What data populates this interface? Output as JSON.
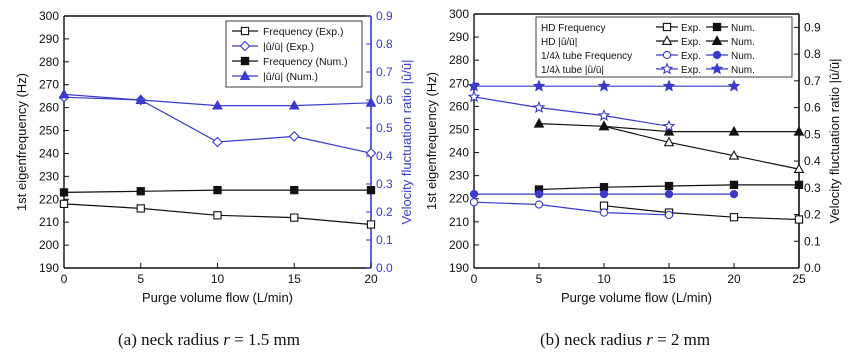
{
  "figure": {
    "caption_a": {
      "prefix": "(a) neck radius ",
      "var": "r",
      "suffix": " = 1.5 mm"
    },
    "caption_b": {
      "prefix": "(b) neck radius ",
      "var": "r",
      "suffix": " = 2 mm"
    }
  },
  "colors": {
    "black": "#111111",
    "blue": "#3a3acc",
    "axis_right": "#3a3acc"
  },
  "chart_data": [
    {
      "id": "a",
      "type": "line",
      "xlabel": "Purge volume flow (L/min)",
      "ylabel_left": "1st eigenfrequency (Hz)",
      "ylabel_right": "Velocity fluctuation ratio |û/ū|",
      "xlim": [
        0,
        20
      ],
      "xticks": [
        0,
        5,
        10,
        15,
        20
      ],
      "ylim_left": [
        190,
        300
      ],
      "yticks_left": [
        190,
        200,
        210,
        220,
        230,
        240,
        250,
        260,
        270,
        280,
        290,
        300
      ],
      "ylim_right": [
        0.0,
        0.9
      ],
      "yticks_right": [
        "0.0",
        "0.1",
        "0.2",
        "0.3",
        "0.4",
        "0.5",
        "0.6",
        "0.7",
        "0.8",
        "0.9"
      ],
      "right_axis_color": "blue",
      "legend_position": "top-right",
      "series": [
        {
          "name": "Frequency (Exp.)",
          "axis": "left",
          "color": "black",
          "marker": "square-open",
          "x": [
            0,
            5,
            10,
            15,
            20
          ],
          "y": [
            218,
            216,
            213,
            212,
            209
          ]
        },
        {
          "name": "|û/ū| (Exp.)",
          "axis": "right",
          "color": "blue",
          "marker": "diamond-open",
          "x": [
            0,
            5,
            10,
            15,
            20
          ],
          "y": [
            0.61,
            0.6,
            0.45,
            0.47,
            0.41
          ]
        },
        {
          "name": "Frequency (Num.)",
          "axis": "left",
          "color": "black",
          "marker": "square-filled",
          "x": [
            0,
            5,
            10,
            15,
            20
          ],
          "y": [
            223,
            223.5,
            224,
            224,
            224
          ]
        },
        {
          "name": "|û/ū| (Num.)",
          "axis": "right",
          "color": "blue",
          "marker": "triangle-filled",
          "x": [
            0,
            5,
            10,
            15,
            20
          ],
          "y": [
            0.62,
            0.6,
            0.58,
            0.58,
            0.59
          ]
        }
      ]
    },
    {
      "id": "b",
      "type": "line",
      "xlabel": "Purge volume flow (L/min)",
      "ylabel_left": "1st eigenfrequency (Hz)",
      "ylabel_right": "Velocity fluctuation ratio |û/ū|",
      "xlim": [
        0,
        25
      ],
      "xticks": [
        0,
        5,
        10,
        15,
        20,
        25
      ],
      "ylim_left": [
        190,
        300
      ],
      "yticks_left": [
        190,
        200,
        210,
        220,
        230,
        240,
        250,
        260,
        270,
        280,
        290,
        300
      ],
      "ylim_right": [
        0.0,
        0.95
      ],
      "yticks_right": [
        "0.0",
        "0.1",
        "0.2",
        "0.3",
        "0.4",
        "0.5",
        "0.6",
        "0.7",
        "0.8",
        "0.9"
      ],
      "legend_position": "top-right",
      "legend_rows": [
        {
          "label": "HD Frequency",
          "exp": "Exp.",
          "num": "Num.",
          "color": "black"
        },
        {
          "label": "HD |û/ū|",
          "exp": "Exp.",
          "num": "Num.",
          "color": "black"
        },
        {
          "label": "1/4λ tube Frequency",
          "exp": "Exp.",
          "num": "Num.",
          "color": "blue"
        },
        {
          "label": "1/4λ tube |û/ū|",
          "exp": "Exp.",
          "num": "Num.",
          "color": "blue"
        }
      ],
      "series": [
        {
          "name": "HD Frequency Exp.",
          "axis": "left",
          "color": "black",
          "marker": "square-open",
          "x": [
            10,
            15,
            20,
            25
          ],
          "y": [
            217,
            214,
            212,
            211
          ]
        },
        {
          "name": "HD Frequency Num.",
          "axis": "left",
          "color": "black",
          "marker": "square-filled",
          "x": [
            5,
            10,
            15,
            20,
            25
          ],
          "y": [
            224,
            225,
            225.5,
            226,
            226
          ]
        },
        {
          "name": "HD |û/ū| Exp.",
          "axis": "right",
          "color": "black",
          "marker": "triangle-open",
          "x": [
            10,
            15,
            20,
            25
          ],
          "y": [
            0.53,
            0.47,
            0.42,
            0.37
          ]
        },
        {
          "name": "HD |û/ū| Num.",
          "axis": "right",
          "color": "black",
          "marker": "triangle-filled",
          "x": [
            5,
            10,
            15,
            20,
            25
          ],
          "y": [
            0.54,
            0.53,
            0.51,
            0.51,
            0.51
          ]
        },
        {
          "name": "1/4λ tube Frequency Exp.",
          "axis": "left",
          "color": "blue",
          "marker": "circle-open",
          "x": [
            0,
            5,
            10,
            15
          ],
          "y": [
            218.5,
            217.5,
            214,
            213
          ]
        },
        {
          "name": "1/4λ tube Frequency Num.",
          "axis": "left",
          "color": "blue",
          "marker": "circle-filled",
          "x": [
            0,
            5,
            10,
            15,
            20
          ],
          "y": [
            222,
            222,
            222,
            222,
            222
          ]
        },
        {
          "name": "1/4λ tube |û/ū| Exp.",
          "axis": "right",
          "color": "blue",
          "marker": "star-open",
          "x": [
            0,
            5,
            10,
            15
          ],
          "y": [
            0.64,
            0.6,
            0.57,
            0.53
          ]
        },
        {
          "name": "1/4λ tube |û/ū| Num.",
          "axis": "right",
          "color": "blue",
          "marker": "star-filled",
          "x": [
            0,
            5,
            10,
            15,
            20
          ],
          "y": [
            0.68,
            0.68,
            0.68,
            0.68,
            0.68
          ]
        }
      ]
    }
  ]
}
